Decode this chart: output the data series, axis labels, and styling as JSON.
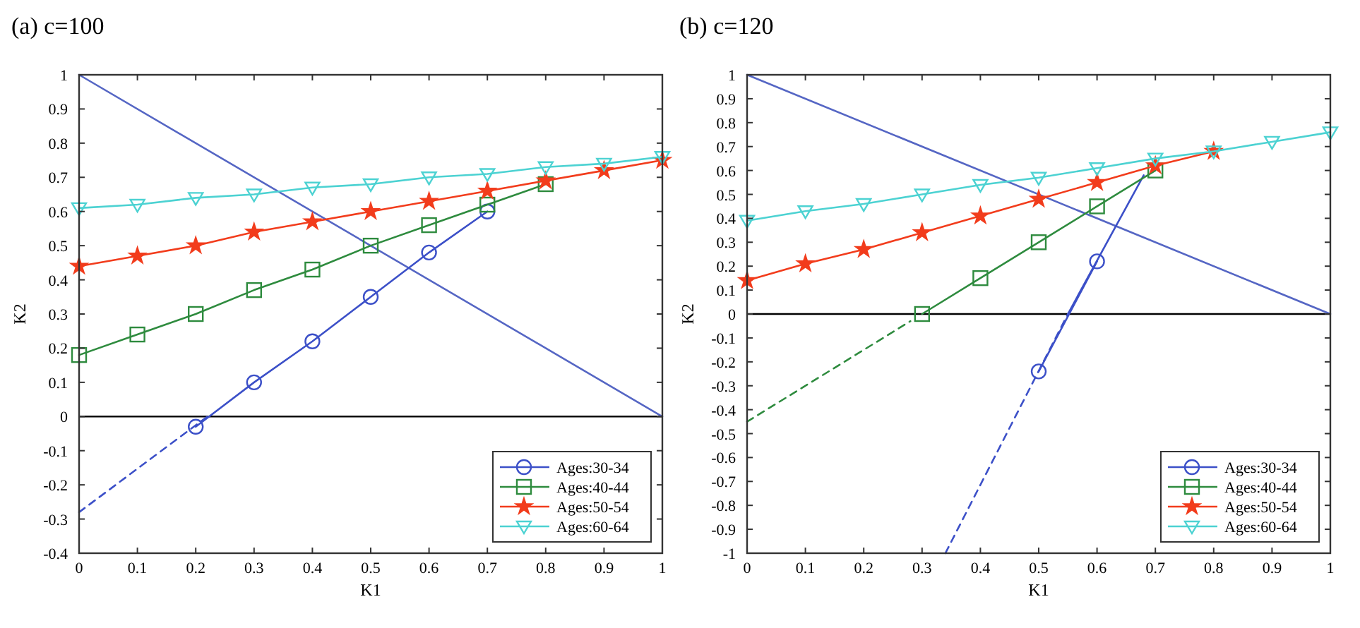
{
  "chart_data": [
    {
      "type": "line",
      "title": "(a) c=100",
      "xlabel": "K1",
      "ylabel": "K2",
      "xlim": [
        0,
        1
      ],
      "xticks": [
        0,
        0.1,
        0.2,
        0.3,
        0.4,
        0.5,
        0.6,
        0.7,
        0.8,
        0.9,
        1
      ],
      "ylim": [
        -0.4,
        1
      ],
      "yticks": [
        -0.4,
        -0.3,
        -0.2,
        -0.1,
        0,
        0.1,
        0.2,
        0.3,
        0.4,
        0.5,
        0.6,
        0.7,
        0.8,
        0.9,
        1
      ],
      "legend": "bottom right",
      "ref_lines": [
        {
          "axis": "y",
          "value": 0,
          "color": "#000000"
        }
      ],
      "series": [
        {
          "color": "#5566c4",
          "x": [
            0,
            1
          ],
          "values": [
            1,
            0
          ],
          "line_style": "solid"
        },
        {
          "color": "#3c50c8",
          "x": [
            0,
            0.22
          ],
          "values": [
            -0.28,
            0
          ],
          "line_style": "dashed"
        },
        {
          "name": "Ages:30-34",
          "color": "#3c50c8",
          "x": [
            0.2,
            0.3,
            0.4,
            0.5,
            0.6,
            0.7
          ],
          "values": [
            -0.03,
            0.1,
            0.22,
            0.35,
            0.48,
            0.6
          ],
          "marker": "circle",
          "line_style": "solid"
        },
        {
          "name": "Ages:40-44",
          "color": "#2e8b3e",
          "x": [
            0,
            0.1,
            0.2,
            0.3,
            0.4,
            0.5,
            0.6,
            0.7,
            0.8
          ],
          "values": [
            0.18,
            0.24,
            0.3,
            0.37,
            0.43,
            0.5,
            0.56,
            0.62,
            0.68
          ],
          "marker": "square",
          "line_style": "solid"
        },
        {
          "name": "Ages:50-54",
          "color": "#f23c1c",
          "x": [
            0,
            0.1,
            0.2,
            0.3,
            0.4,
            0.5,
            0.6,
            0.7,
            0.8,
            0.9,
            1
          ],
          "values": [
            0.44,
            0.47,
            0.5,
            0.54,
            0.57,
            0.6,
            0.63,
            0.66,
            0.69,
            0.72,
            0.75
          ],
          "marker": "star",
          "line_style": "solid"
        },
        {
          "name": "Ages:60-64",
          "color": "#4cd2d2",
          "x": [
            0,
            0.1,
            0.2,
            0.3,
            0.4,
            0.5,
            0.6,
            0.7,
            0.8,
            0.9,
            1
          ],
          "values": [
            0.61,
            0.62,
            0.64,
            0.65,
            0.67,
            0.68,
            0.7,
            0.71,
            0.73,
            0.74,
            0.76
          ],
          "marker": "triangle",
          "line_style": "solid"
        }
      ]
    },
    {
      "type": "line",
      "title": "(b) c=120",
      "xlabel": "K1",
      "ylabel": "K2",
      "xlim": [
        0,
        1
      ],
      "xticks": [
        0,
        0.1,
        0.2,
        0.3,
        0.4,
        0.5,
        0.6,
        0.7,
        0.8,
        0.9,
        1
      ],
      "ylim": [
        -1,
        1
      ],
      "yticks": [
        -1,
        -0.9,
        -0.8,
        -0.7,
        -0.6,
        -0.5,
        -0.4,
        -0.3,
        -0.2,
        -0.1,
        0,
        0.1,
        0.2,
        0.3,
        0.4,
        0.5,
        0.6,
        0.7,
        0.8,
        0.9,
        1
      ],
      "legend": "bottom right",
      "ref_lines": [
        {
          "axis": "y",
          "value": 0,
          "color": "#000000"
        }
      ],
      "series": [
        {
          "color": "#5566c4",
          "x": [
            0,
            1
          ],
          "values": [
            1,
            0
          ],
          "line_style": "solid"
        },
        {
          "color": "#3c50c8",
          "x": [
            0.34,
            0.55
          ],
          "values": [
            -1,
            0
          ],
          "line_style": "dashed"
        },
        {
          "color": "#3c50c8",
          "x": [
            0.55,
            0.68
          ],
          "values": [
            0,
            0.58
          ],
          "line_style": "solid"
        },
        {
          "name": "Ages:30-34",
          "color": "#3c50c8",
          "x": [
            0.5,
            0.6
          ],
          "values": [
            -0.24,
            0.22
          ],
          "marker": "circle",
          "line_style": "solid"
        },
        {
          "color": "#2e8b3e",
          "x": [
            0,
            0.28
          ],
          "values": [
            -0.45,
            -0.03
          ],
          "line_style": "dashed"
        },
        {
          "name": "Ages:40-44",
          "color": "#2e8b3e",
          "x": [
            0.3,
            0.4,
            0.5,
            0.6,
            0.7
          ],
          "values": [
            0,
            0.15,
            0.3,
            0.45,
            0.6
          ],
          "marker": "square",
          "line_style": "solid"
        },
        {
          "name": "Ages:50-54",
          "color": "#f23c1c",
          "x": [
            0,
            0.1,
            0.2,
            0.3,
            0.4,
            0.5,
            0.6,
            0.7,
            0.8
          ],
          "values": [
            0.14,
            0.21,
            0.27,
            0.34,
            0.41,
            0.48,
            0.55,
            0.62,
            0.68
          ],
          "marker": "star",
          "line_style": "solid"
        },
        {
          "name": "Ages:60-64",
          "color": "#4cd2d2",
          "x": [
            0,
            0.1,
            0.2,
            0.3,
            0.4,
            0.5,
            0.6,
            0.7,
            0.8,
            0.9,
            1
          ],
          "values": [
            0.39,
            0.43,
            0.46,
            0.5,
            0.54,
            0.57,
            0.61,
            0.65,
            0.68,
            0.72,
            0.76
          ],
          "marker": "triangle",
          "line_style": "solid"
        }
      ]
    }
  ]
}
